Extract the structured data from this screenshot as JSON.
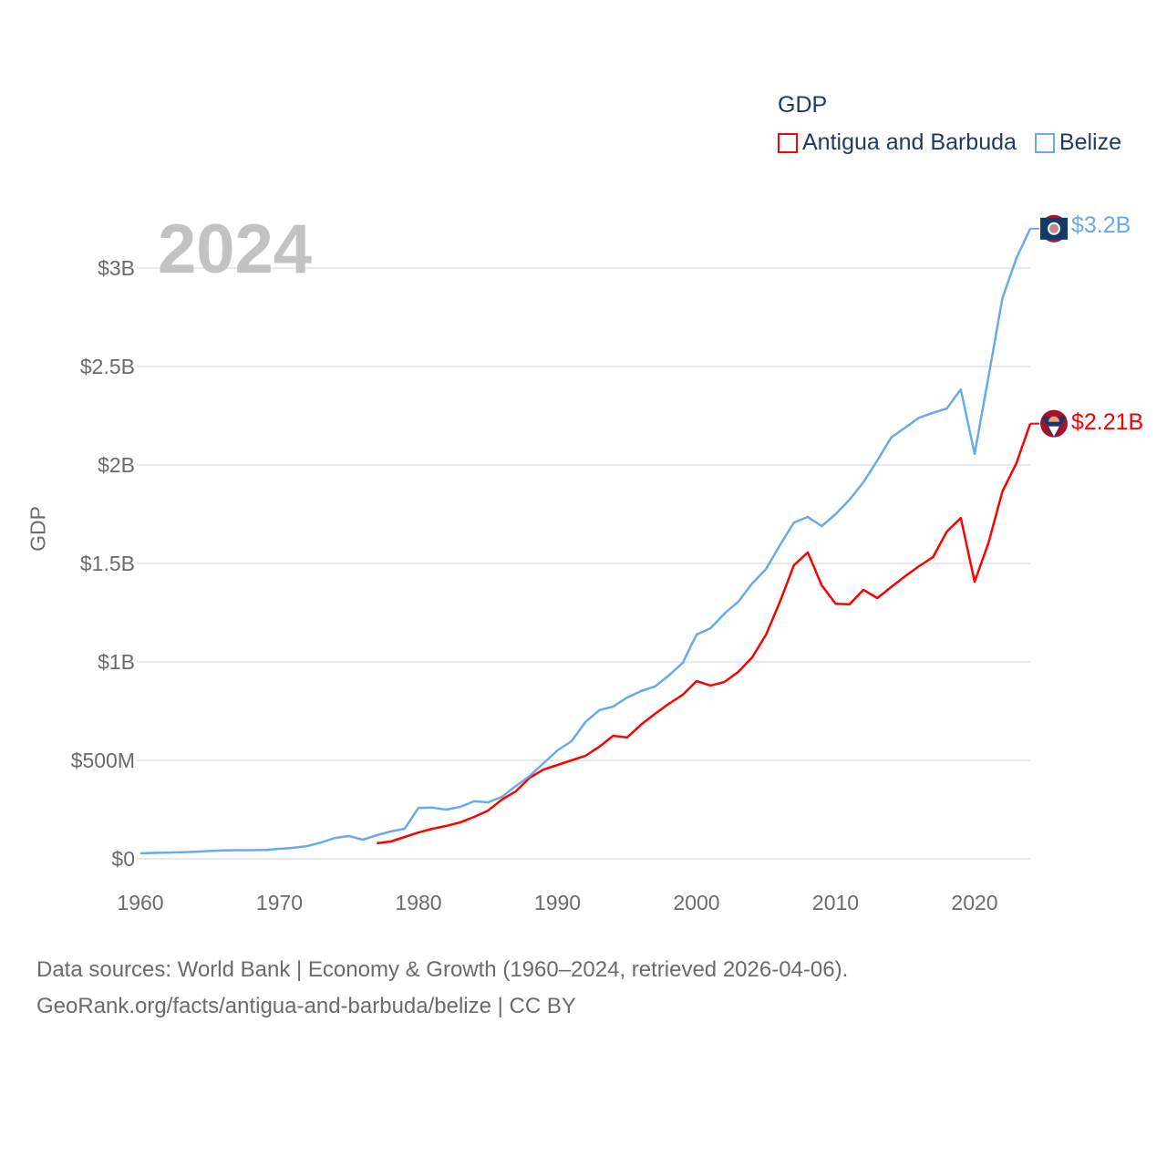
{
  "chart_data": {
    "type": "line",
    "title": "GDP",
    "year_label": "2024",
    "xlabel": "",
    "ylabel": "GDP",
    "xlim": [
      1960,
      2024
    ],
    "ylim": [
      0,
      3.2
    ],
    "y_unit": "billion USD",
    "grid": true,
    "legend_placement": "top-right",
    "x_ticks": [
      1960,
      1970,
      1980,
      1990,
      2000,
      2010,
      2020
    ],
    "x_tick_labels": [
      "1960",
      "1970",
      "1980",
      "1990",
      "2000",
      "2010",
      "2020"
    ],
    "y_ticks": [
      0,
      0.5,
      1,
      1.5,
      2,
      2.5,
      3
    ],
    "y_tick_labels": [
      "$0",
      "$500M",
      "$1B",
      "$1.5B",
      "$2B",
      "$2.5B",
      "$3B"
    ],
    "series": [
      {
        "name": "Antigua and Barbuda",
        "color": "#ff0000",
        "end_label": "$2.21B",
        "flag_icon": "antigua-and-barbuda-flag",
        "start_year": 1977,
        "values": [
          0.079,
          0.088,
          0.111,
          0.134,
          0.153,
          0.167,
          0.185,
          0.213,
          0.245,
          0.301,
          0.343,
          0.412,
          0.454,
          0.477,
          0.5,
          0.523,
          0.569,
          0.625,
          0.616,
          0.681,
          0.736,
          0.787,
          0.833,
          0.903,
          0.88,
          0.898,
          0.949,
          1.023,
          1.139,
          1.306,
          1.491,
          1.556,
          1.389,
          1.296,
          1.292,
          1.366,
          1.324,
          1.38,
          1.435,
          1.486,
          1.532,
          1.662,
          1.731,
          1.407,
          1.606,
          1.866,
          2.009,
          2.21
        ]
      },
      {
        "name": "Belize",
        "color": "#6aaae8",
        "end_label": "$3.2B",
        "flag_icon": "belize-flag",
        "start_year": 1960,
        "values": [
          0.028,
          0.03,
          0.032,
          0.034,
          0.036,
          0.04,
          0.043,
          0.044,
          0.044,
          0.045,
          0.051,
          0.056,
          0.065,
          0.083,
          0.106,
          0.116,
          0.097,
          0.12,
          0.139,
          0.153,
          0.259,
          0.26,
          0.25,
          0.264,
          0.292,
          0.287,
          0.315,
          0.37,
          0.421,
          0.486,
          0.551,
          0.597,
          0.694,
          0.755,
          0.773,
          0.819,
          0.852,
          0.875,
          0.931,
          0.995,
          1.139,
          1.171,
          1.245,
          1.306,
          1.398,
          1.472,
          1.593,
          1.708,
          1.736,
          1.69,
          1.75,
          1.824,
          1.912,
          2.023,
          2.14,
          2.19,
          2.24,
          2.265,
          2.287,
          2.384,
          2.056,
          2.45,
          2.847,
          3.05,
          3.2
        ]
      }
    ]
  },
  "footer": {
    "line1": "Data sources: World Bank | Economy & Growth (1960–2024, retrieved 2026-04-06).",
    "line2": "GeoRank.org/facts/antigua-and-barbuda/belize | CC BY"
  }
}
